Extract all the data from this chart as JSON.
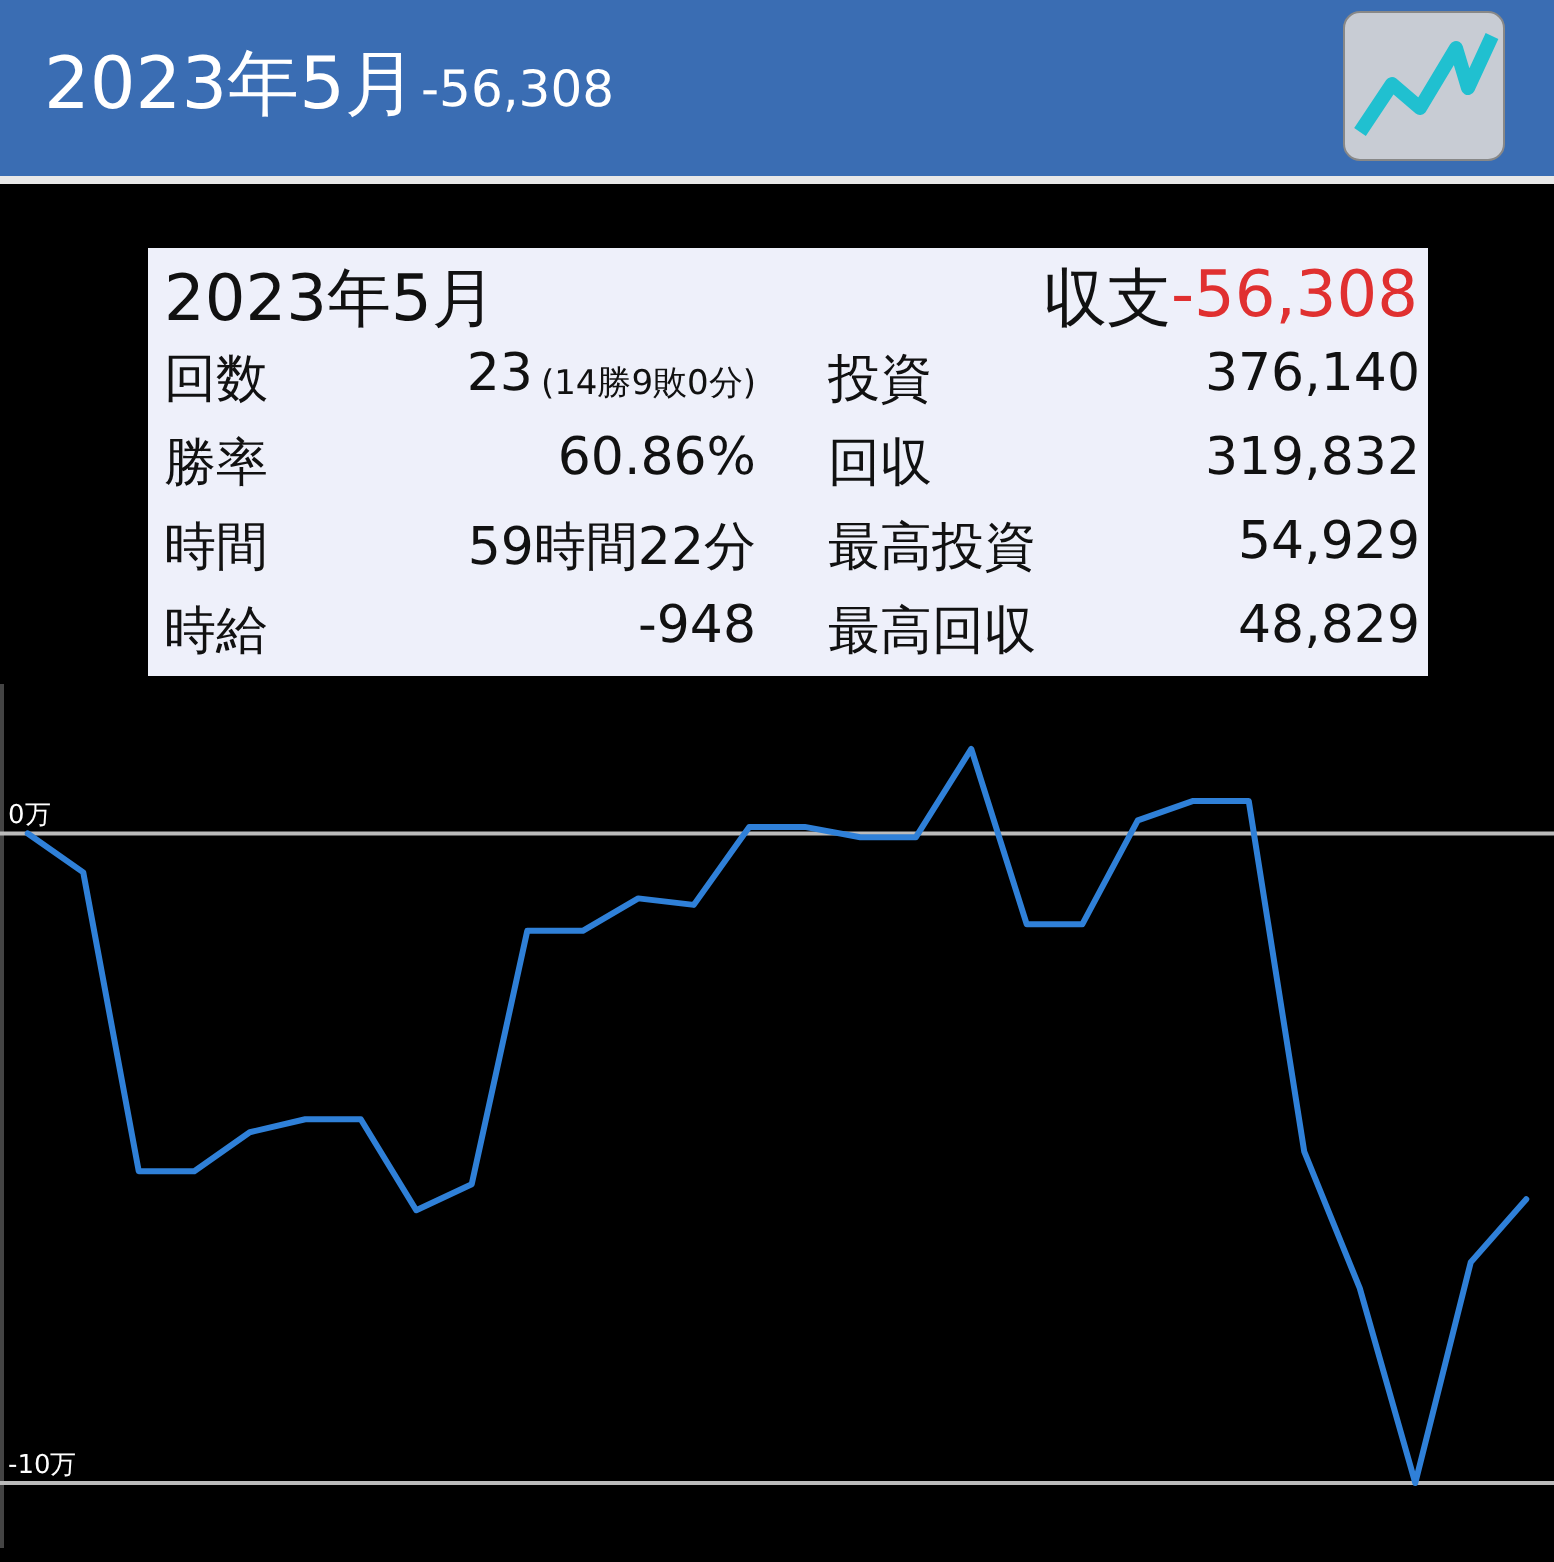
{
  "chart_data": {
    "type": "line",
    "title": "2023年5月",
    "subtitle": "-56,308",
    "annotations": [
      "2023年5月",
      "収支",
      "-56,308",
      "回数",
      "23",
      "(14勝9敗0分)",
      "投資",
      "376,140",
      "勝率",
      "60.86%",
      "回収",
      "319,832",
      "時間",
      "59時間22分",
      "最高投資",
      "54,929",
      "時給",
      "-948",
      "最高回収",
      "48,829"
    ],
    "categories": [
      null,
      null,
      null,
      null,
      null,
      null,
      null,
      null,
      null,
      null,
      null,
      null,
      null,
      null,
      null,
      null,
      null,
      null,
      null,
      null,
      null,
      null,
      null,
      null,
      null,
      null,
      null,
      null
    ],
    "series": [
      {
        "color": "#2f80d8",
        "values": [
          0,
          -0.6,
          -5.2,
          -5.2,
          -4.6,
          -4.4,
          -4.4,
          -5.8,
          -5.4,
          -1.5,
          -1.5,
          -1.0,
          -1.1,
          0.1,
          0.1,
          -0.06,
          -0.06,
          1.3,
          -1.4,
          -1.4,
          0.2,
          0.5,
          0.5,
          -4.9,
          -7.0,
          -10.0,
          -6.6,
          -5.63
        ]
      }
    ],
    "ylim": [
      -11,
      2.3
    ],
    "yticks": [
      {
        "value": 0,
        "label": "0万"
      },
      {
        "value": -10,
        "label": "-10万"
      }
    ],
    "grid": "y",
    "tick_labels": "y",
    "marker": "none",
    "line_style": "solid"
  }
}
